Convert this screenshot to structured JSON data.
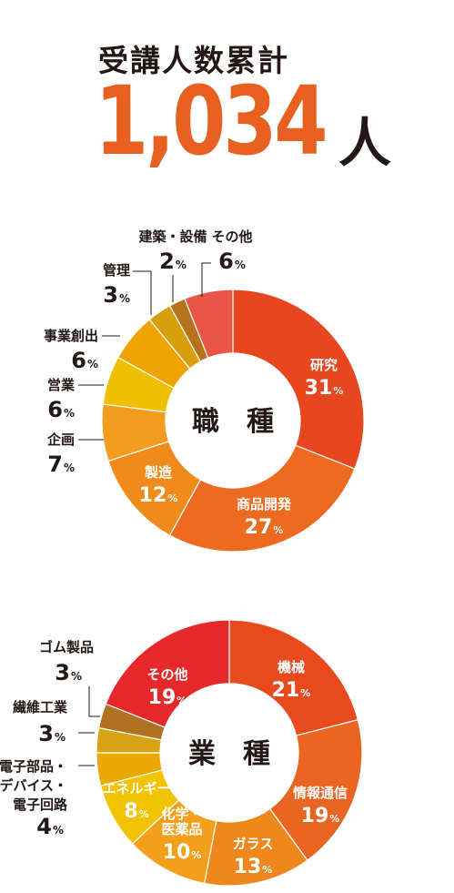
{
  "header": {
    "title": "受講人数累計",
    "total": "1,034",
    "unit": "人"
  },
  "chart_data": [
    {
      "type": "pie",
      "title": "職　種",
      "categories": [
        "研究",
        "商品開発",
        "製造",
        "企画",
        "営業",
        "事業創出",
        "管理",
        "建築・設備",
        "その他"
      ],
      "values": [
        31,
        27,
        12,
        7,
        6,
        6,
        3,
        2,
        6
      ],
      "value_suffix": "%",
      "colors": [
        "#e8461f",
        "#ec6b1e",
        "#f08a1b",
        "#f29c20",
        "#eec000",
        "#eea400",
        "#d69f0b",
        "#b7731c",
        "#eb5547"
      ],
      "inside_labels": [
        true,
        true,
        true,
        false,
        false,
        false,
        false,
        false,
        false
      ],
      "outside_label_lines": [
        [],
        [],
        [],
        [
          "企画"
        ],
        [
          "営業"
        ],
        [
          "事業創出"
        ],
        [
          "管理"
        ],
        [
          "建築・設備"
        ],
        [
          "その他"
        ]
      ]
    },
    {
      "type": "pie",
      "title": "業　種",
      "categories": [
        "機械",
        "情報通信",
        "ガラス",
        "化学・医薬品",
        "エネルギー",
        "電子部品・デバイス・電子回路",
        "繊維工業",
        "ゴム製品",
        "その他"
      ],
      "values": [
        21,
        19,
        13,
        10,
        8,
        4,
        3,
        3,
        19
      ],
      "value_suffix": "%",
      "colors": [
        "#e84a1e",
        "#ea6521",
        "#ef881c",
        "#f29f1b",
        "#f2c300",
        "#eaa800",
        "#d9a316",
        "#b07222",
        "#e5282a"
      ],
      "inside_labels": [
        true,
        true,
        true,
        true,
        true,
        false,
        false,
        false,
        true
      ],
      "outside_label_lines": [
        [],
        [],
        [],
        [],
        [],
        [
          "電子部品・",
          "デバイス・",
          "電子回路"
        ],
        [
          "繊維工業"
        ],
        [
          "ゴム製品"
        ],
        []
      ],
      "inside_label_lines": [
        [
          "機械"
        ],
        [
          "情報通信"
        ],
        [
          "ガラス"
        ],
        [
          "化学・",
          "医薬品"
        ],
        [
          "エネルギー"
        ],
        [],
        [],
        [],
        [
          "その他"
        ]
      ]
    }
  ]
}
